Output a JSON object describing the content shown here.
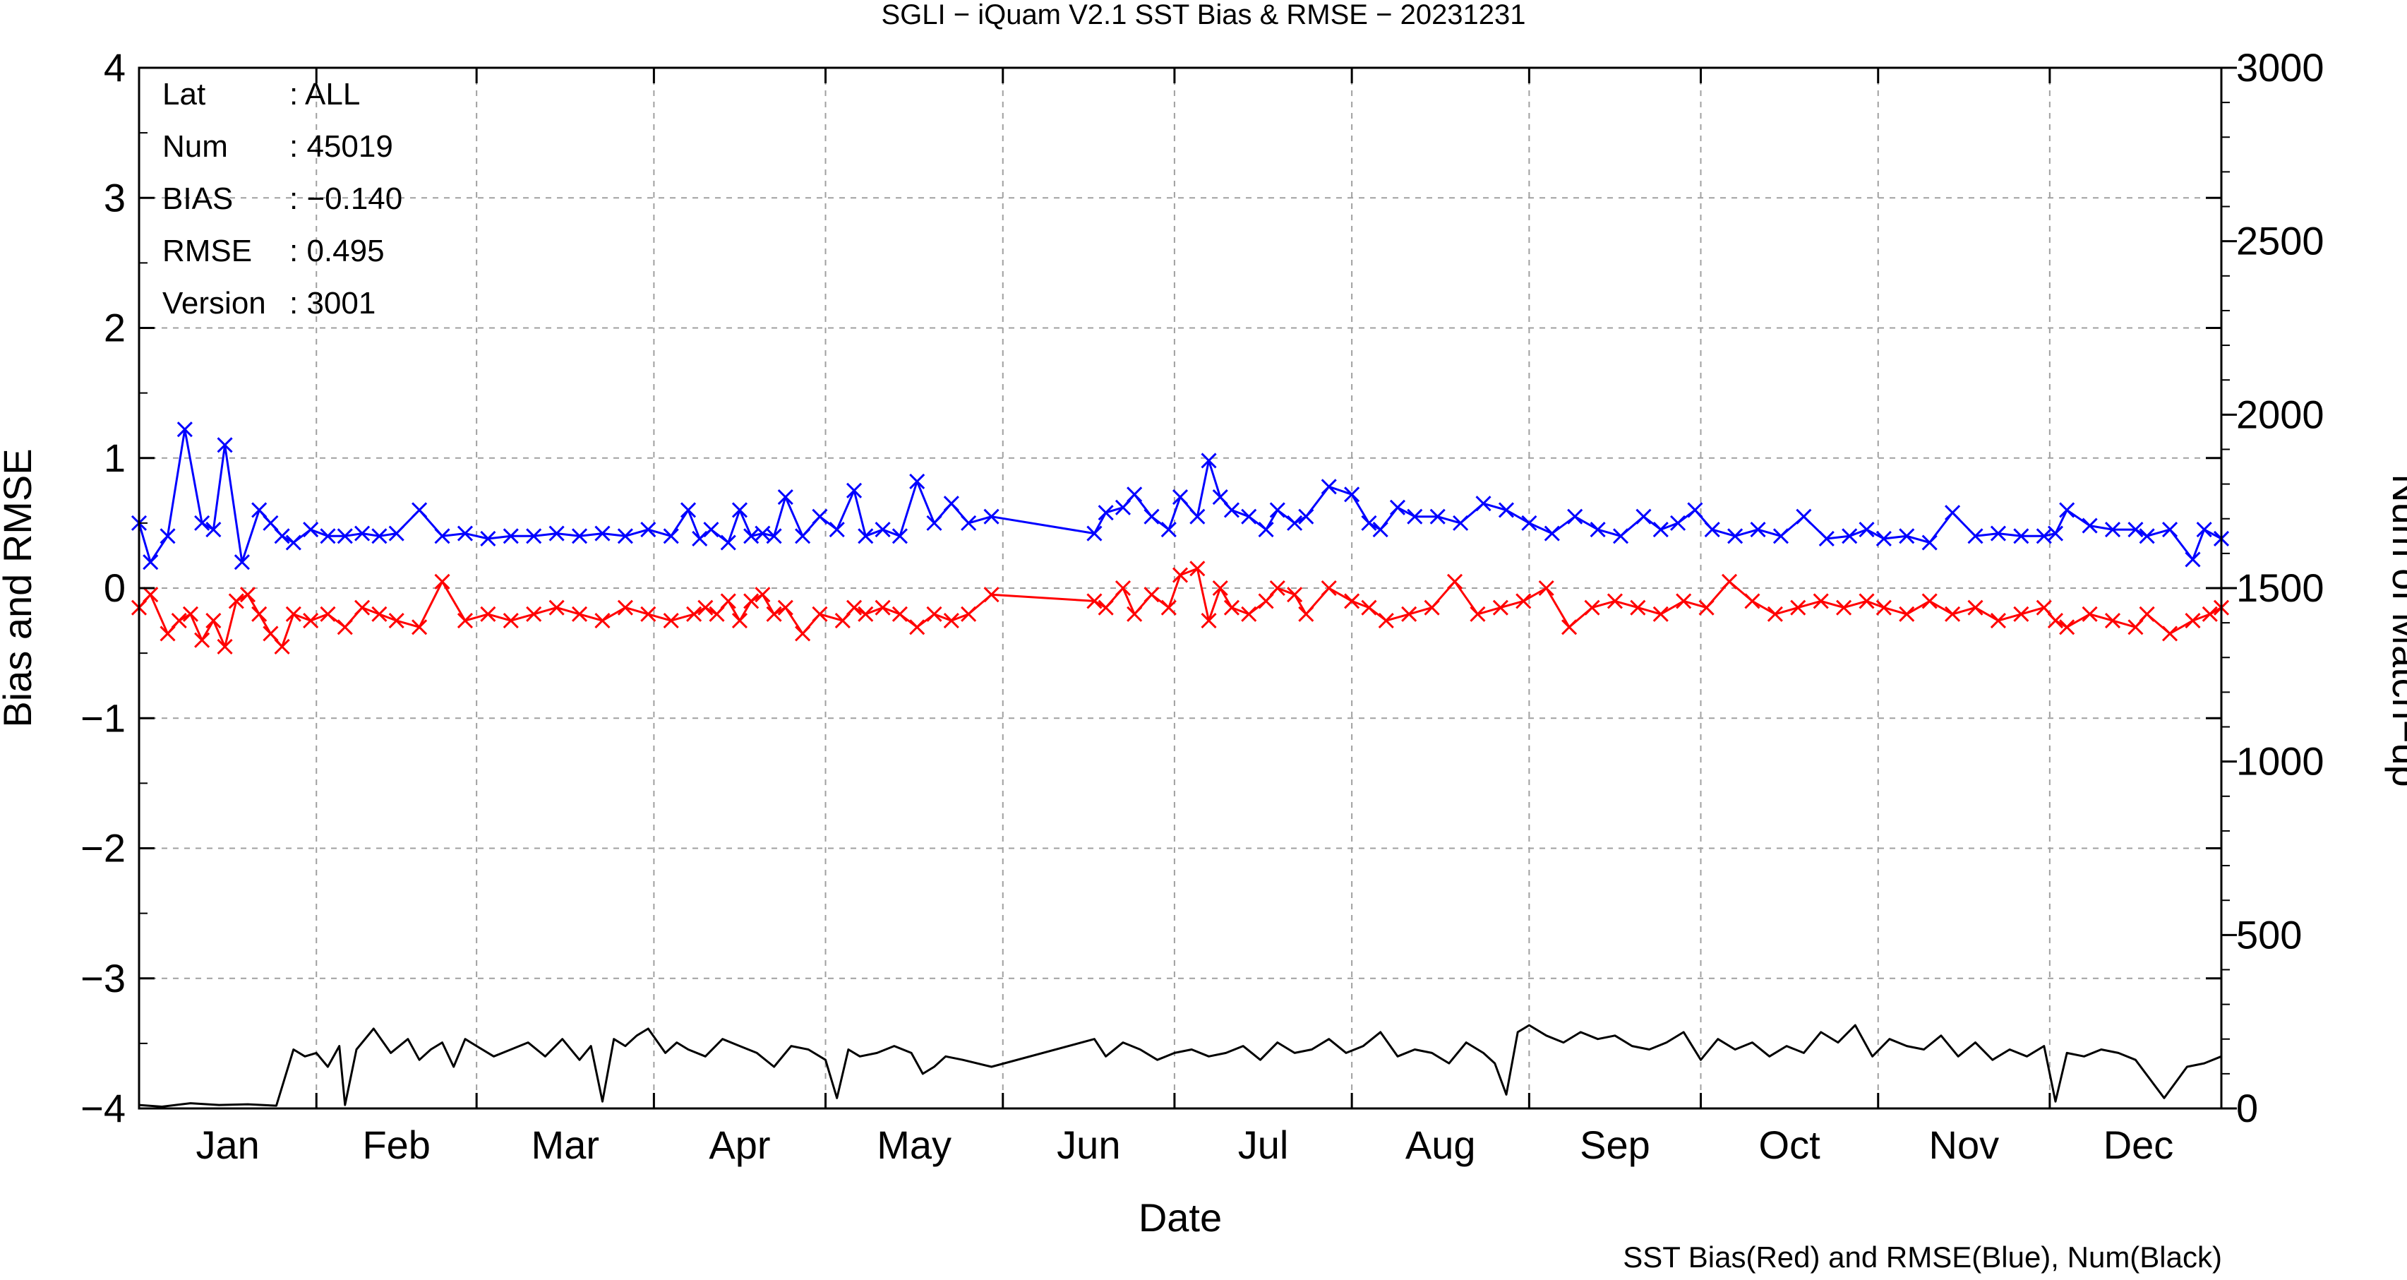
{
  "chart_data": {
    "type": "line",
    "title": "SGLI − iQuam V2.1 SST Bias & RMSE  − 20231231",
    "xlabel": "Date",
    "ylabel_left": "Bias and RMSE",
    "ylabel_right": "Num of Match−up",
    "footnote": "SST Bias(Red) and RMSE(Blue), Num(Black)",
    "x_unit": "day of year 2023",
    "xlim": [
      1,
      365
    ],
    "ylim_left": [
      -4,
      4
    ],
    "ylim_right": [
      0,
      3000
    ],
    "left_ticks": [
      "4",
      "3",
      "2",
      "1",
      "0",
      "−1",
      "−2",
      "−3",
      "−4"
    ],
    "right_ticks": [
      "3000",
      "2500",
      "2000",
      "1500",
      "1000",
      "500",
      "0"
    ],
    "months": [
      "Jan",
      "Feb",
      "Mar",
      "Apr",
      "May",
      "Jun",
      "Jul",
      "Aug",
      "Sep",
      "Oct",
      "Nov",
      "Dec"
    ],
    "grid": true,
    "stats": [
      {
        "key": "Lat",
        "value": ": ALL"
      },
      {
        "key": "Num",
        "value": ": 45019"
      },
      {
        "key": "BIAS",
        "value": ": −0.140"
      },
      {
        "key": "RMSE",
        "value": ": 0.495"
      },
      {
        "key": "Version",
        "value": ": 3001"
      }
    ],
    "colors": {
      "bias": "#ff0000",
      "rmse": "#0000ff",
      "num": "#000000",
      "grid": "#a0a0a0"
    },
    "series": [
      {
        "key": "rmse",
        "marker": "x",
        "axis": "left",
        "x": [
          1,
          3,
          6,
          9,
          12,
          14,
          16,
          19,
          22,
          24,
          26,
          28,
          31,
          34,
          37,
          40,
          43,
          46,
          50,
          54,
          58,
          62,
          66,
          70,
          74,
          78,
          82,
          86,
          90,
          94,
          97,
          99,
          101,
          104,
          106,
          108,
          110,
          112,
          114,
          117,
          120,
          123,
          126,
          128,
          131,
          134,
          137,
          140,
          143,
          146,
          150,
          168,
          170,
          173,
          175,
          178,
          181,
          183,
          186,
          188,
          190,
          192,
          195,
          198,
          200,
          203,
          205,
          209,
          213,
          216,
          218,
          221,
          224,
          228,
          232,
          236,
          240,
          244,
          248,
          252,
          256,
          260,
          264,
          267,
          270,
          273,
          276,
          280,
          284,
          288,
          292,
          296,
          300,
          303,
          306,
          310,
          314,
          318,
          322,
          326,
          330,
          334,
          336,
          338,
          342,
          346,
          350,
          352,
          356,
          360,
          362,
          365
        ],
        "values": [
          0.5,
          0.2,
          0.4,
          1.22,
          0.5,
          0.45,
          1.1,
          0.2,
          0.6,
          0.5,
          0.4,
          0.35,
          0.45,
          0.4,
          0.4,
          0.42,
          0.4,
          0.42,
          0.6,
          0.4,
          0.42,
          0.38,
          0.4,
          0.4,
          0.42,
          0.4,
          0.42,
          0.4,
          0.45,
          0.4,
          0.6,
          0.38,
          0.45,
          0.35,
          0.6,
          0.4,
          0.42,
          0.4,
          0.7,
          0.4,
          0.55,
          0.45,
          0.75,
          0.4,
          0.45,
          0.4,
          0.82,
          0.5,
          0.65,
          0.5,
          0.55,
          0.42,
          0.58,
          0.62,
          0.72,
          0.55,
          0.45,
          0.7,
          0.55,
          0.98,
          0.7,
          0.6,
          0.55,
          0.45,
          0.6,
          0.5,
          0.55,
          0.78,
          0.72,
          0.5,
          0.45,
          0.62,
          0.55,
          0.55,
          0.5,
          0.65,
          0.6,
          0.5,
          0.42,
          0.55,
          0.45,
          0.4,
          0.55,
          0.45,
          0.5,
          0.6,
          0.45,
          0.4,
          0.45,
          0.4,
          0.55,
          0.38,
          0.4,
          0.45,
          0.38,
          0.4,
          0.35,
          0.58,
          0.4,
          0.42,
          0.4,
          0.4,
          0.42,
          0.6,
          0.48,
          0.45,
          0.45,
          0.4,
          0.45,
          0.22,
          0.45,
          0.38
        ]
      },
      {
        "key": "bias",
        "marker": "x",
        "axis": "left",
        "x": [
          1,
          3,
          6,
          8,
          10,
          12,
          14,
          16,
          18,
          20,
          22,
          24,
          26,
          28,
          31,
          34,
          37,
          40,
          43,
          46,
          50,
          54,
          58,
          62,
          66,
          70,
          74,
          78,
          82,
          86,
          90,
          94,
          98,
          100,
          102,
          104,
          106,
          108,
          110,
          112,
          114,
          117,
          120,
          124,
          126,
          128,
          131,
          134,
          137,
          140,
          143,
          146,
          150,
          168,
          170,
          173,
          175,
          178,
          181,
          183,
          186,
          188,
          190,
          192,
          195,
          198,
          200,
          203,
          205,
          209,
          213,
          216,
          219,
          223,
          227,
          231,
          235,
          239,
          243,
          247,
          251,
          255,
          259,
          263,
          267,
          271,
          275,
          279,
          283,
          287,
          291,
          295,
          299,
          303,
          306,
          310,
          314,
          318,
          322,
          326,
          330,
          334,
          336,
          338,
          342,
          346,
          350,
          352,
          356,
          360,
          363,
          365
        ],
        "values": [
          -0.15,
          -0.05,
          -0.35,
          -0.25,
          -0.2,
          -0.4,
          -0.25,
          -0.45,
          -0.1,
          -0.05,
          -0.2,
          -0.35,
          -0.45,
          -0.2,
          -0.25,
          -0.2,
          -0.3,
          -0.15,
          -0.2,
          -0.25,
          -0.3,
          0.05,
          -0.25,
          -0.2,
          -0.25,
          -0.2,
          -0.15,
          -0.2,
          -0.25,
          -0.15,
          -0.2,
          -0.25,
          -0.2,
          -0.15,
          -0.2,
          -0.1,
          -0.25,
          -0.1,
          -0.05,
          -0.2,
          -0.15,
          -0.35,
          -0.2,
          -0.25,
          -0.15,
          -0.2,
          -0.15,
          -0.2,
          -0.3,
          -0.2,
          -0.25,
          -0.2,
          -0.05,
          -0.1,
          -0.15,
          0.0,
          -0.2,
          -0.05,
          -0.15,
          0.1,
          0.15,
          -0.25,
          0.0,
          -0.15,
          -0.2,
          -0.1,
          0.0,
          -0.05,
          -0.2,
          0.0,
          -0.1,
          -0.15,
          -0.25,
          -0.2,
          -0.15,
          0.05,
          -0.2,
          -0.15,
          -0.1,
          0.0,
          -0.3,
          -0.15,
          -0.1,
          -0.15,
          -0.2,
          -0.1,
          -0.15,
          0.05,
          -0.1,
          -0.2,
          -0.15,
          -0.1,
          -0.15,
          -0.1,
          -0.15,
          -0.2,
          -0.1,
          -0.2,
          -0.15,
          -0.25,
          -0.2,
          -0.15,
          -0.25,
          -0.3,
          -0.2,
          -0.25,
          -0.3,
          -0.2,
          -0.35,
          -0.25,
          -0.2,
          -0.15
        ]
      },
      {
        "key": "num",
        "marker": "none",
        "axis": "right",
        "x": [
          1,
          5,
          10,
          15,
          20,
          25,
          28,
          30,
          32,
          34,
          36,
          37,
          39,
          42,
          45,
          48,
          50,
          52,
          54,
          56,
          58,
          60,
          63,
          66,
          69,
          72,
          75,
          78,
          80,
          82,
          84,
          86,
          88,
          90,
          93,
          95,
          97,
          100,
          103,
          106,
          109,
          112,
          115,
          118,
          121,
          123,
          125,
          127,
          130,
          133,
          136,
          138,
          140,
          142,
          145,
          150,
          168,
          170,
          173,
          176,
          179,
          182,
          185,
          188,
          191,
          194,
          197,
          200,
          203,
          206,
          209,
          212,
          215,
          218,
          221,
          224,
          227,
          230,
          233,
          236,
          238,
          240,
          242,
          244,
          247,
          250,
          253,
          256,
          259,
          262,
          265,
          268,
          271,
          274,
          277,
          280,
          283,
          286,
          289,
          292,
          295,
          298,
          301,
          304,
          307,
          310,
          313,
          316,
          319,
          322,
          325,
          328,
          331,
          334,
          336,
          338,
          341,
          344,
          347,
          350,
          355,
          359,
          362,
          365
        ],
        "values": [
          10,
          5,
          15,
          10,
          12,
          8,
          170,
          150,
          160,
          120,
          180,
          10,
          170,
          230,
          160,
          200,
          140,
          170,
          190,
          120,
          200,
          180,
          150,
          170,
          190,
          150,
          200,
          140,
          180,
          20,
          200,
          180,
          210,
          230,
          160,
          190,
          170,
          150,
          200,
          180,
          160,
          120,
          180,
          170,
          140,
          30,
          170,
          150,
          160,
          180,
          160,
          100,
          120,
          150,
          140,
          120,
          200,
          150,
          190,
          170,
          140,
          160,
          170,
          150,
          160,
          180,
          140,
          190,
          160,
          170,
          200,
          160,
          180,
          220,
          150,
          170,
          160,
          130,
          190,
          160,
          130,
          40,
          220,
          240,
          210,
          190,
          220,
          200,
          210,
          180,
          170,
          190,
          220,
          140,
          200,
          170,
          190,
          150,
          180,
          160,
          220,
          190,
          240,
          150,
          200,
          180,
          170,
          210,
          150,
          190,
          140,
          170,
          150,
          180,
          20,
          160,
          150,
          170,
          160,
          140,
          30,
          120,
          130,
          150
        ]
      }
    ]
  }
}
